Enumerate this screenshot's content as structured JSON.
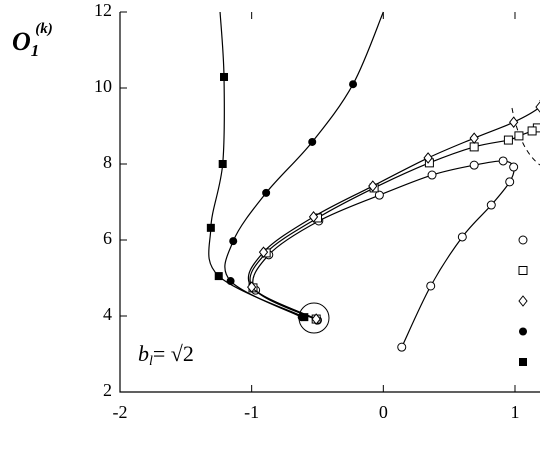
{
  "chart_data": {
    "type": "line",
    "y_label": "O",
    "y_label_sub": "1",
    "y_label_sup": "(k)",
    "annotation": "b",
    "annotation_sub": "l",
    "annotation_rest": "= √2",
    "xlim": [
      -2,
      1.19
    ],
    "ylim": [
      2,
      12
    ],
    "xticks": [
      -2,
      -1,
      0,
      1
    ],
    "yticks": [
      2,
      4,
      6,
      8,
      10,
      12
    ],
    "color": "#000000",
    "series": [
      {
        "marker": "open-circle",
        "x": [
          0.14,
          0.36,
          0.6,
          0.82,
          0.96,
          0.99,
          0.91,
          0.69,
          0.37,
          -0.03,
          -0.49,
          -0.87,
          -0.97,
          -0.5
        ],
        "values": [
          3.18,
          4.79,
          6.08,
          6.92,
          7.53,
          7.92,
          8.08,
          7.97,
          7.71,
          7.18,
          6.5,
          5.61,
          4.68,
          3.89
        ]
      },
      {
        "marker": "open-square",
        "curve_start": [
          1.19,
          9.05
        ],
        "x": [
          1.17,
          1.13,
          1.03,
          0.95,
          0.69,
          0.35,
          -0.07,
          -0.5,
          -0.89,
          -0.99,
          -0.51
        ],
        "values": [
          8.95,
          8.87,
          8.74,
          8.63,
          8.45,
          8.03,
          7.37,
          6.58,
          5.66,
          4.74,
          3.92
        ]
      },
      {
        "marker": "open-diamond",
        "curve_start": [
          1.19,
          9.68
        ],
        "x": [
          1.19,
          0.99,
          0.69,
          0.34,
          -0.08,
          -0.53,
          -0.91,
          -1.0,
          -0.51
        ],
        "values": [
          9.5,
          9.1,
          8.68,
          8.16,
          7.42,
          6.61,
          5.68,
          4.76,
          3.92
        ]
      },
      {
        "marker": "filled-circle",
        "curve_start": [
          0.0,
          12
        ],
        "x": [
          -0.23,
          -0.54,
          -0.89,
          -1.14,
          -1.16,
          -0.62
        ],
        "values": [
          10.1,
          8.58,
          7.24,
          5.97,
          4.92,
          3.97
        ]
      },
      {
        "marker": "filled-square",
        "curve_start": [
          -1.24,
          12
        ],
        "x": [
          -1.21,
          -1.22,
          -1.31,
          -1.25,
          -0.6
        ],
        "values": [
          10.29,
          8.0,
          6.32,
          5.05,
          3.97
        ]
      }
    ]
  }
}
